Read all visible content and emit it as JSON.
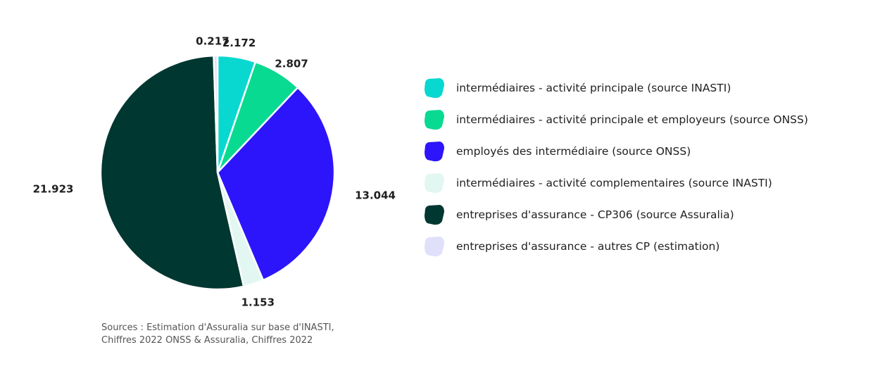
{
  "chart_data": {
    "type": "pie",
    "slices": [
      {
        "label": "intermédiaires - activité principale (source INASTI)",
        "value": 2.172,
        "display": "2.172",
        "color": "#08d8d0"
      },
      {
        "label": "intermédiaires - activité principale et employeurs (source ONSS)",
        "value": 2.807,
        "display": "2.807",
        "color": "#09da92"
      },
      {
        "label": "employés des intermédiaire (source ONSS)",
        "value": 13.044,
        "display": "13.044",
        "color": "#2c15fa"
      },
      {
        "label": "intermédiaires - activité complementaires (source INASTI)",
        "value": 1.153,
        "display": "1.153",
        "color": "#e3f7f2"
      },
      {
        "label": "entreprises d'assurance - CP306 (source Assuralia)",
        "value": 21.923,
        "display": "21.923",
        "color": "#003730"
      },
      {
        "label": "entreprises d'assurance - autres CP (estimation)",
        "value": 0.217,
        "display": "0.217",
        "color": "#e1e0fb"
      }
    ],
    "legend_position": "right",
    "start_angle": "top",
    "direction": "clockwise"
  },
  "source_text": {
    "line1": "Sources : Estimation d'Assuralia sur base d'INASTI,",
    "line2": "Chiffres 2022 ONSS & Assuralia, Chiffres 2022"
  }
}
